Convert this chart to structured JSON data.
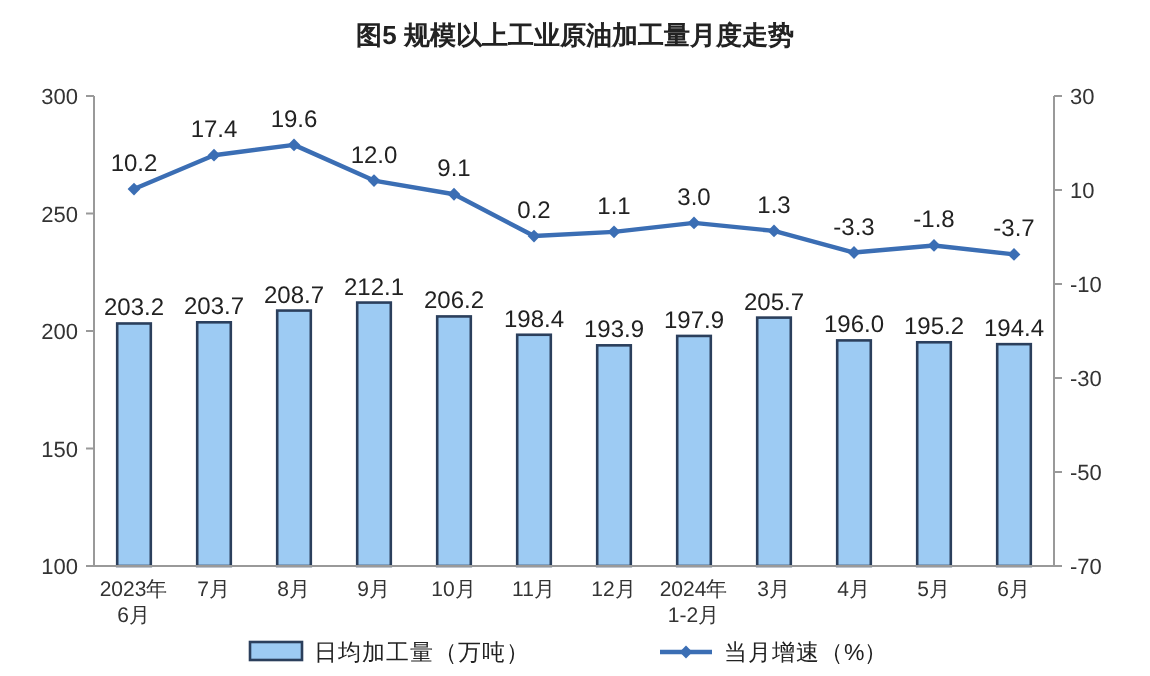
{
  "chart_data": {
    "type": "bar",
    "title": "图5  规模以上工业原油加工量月度走势",
    "categories": [
      "2023年\n6月",
      "7月",
      "8月",
      "9月",
      "10月",
      "11月",
      "12月",
      "2024年\n1-2月",
      "3月",
      "4月",
      "5月",
      "6月"
    ],
    "series": [
      {
        "name": "日均加工量（万吨）",
        "color": "#9dcbf3",
        "values": [
          203.2,
          203.7,
          208.7,
          212.1,
          206.2,
          198.4,
          193.9,
          197.9,
          205.7,
          196.0,
          195.2,
          194.4
        ],
        "value_labels": [
          "203.2",
          "203.7",
          "208.7",
          "212.1",
          "206.2",
          "198.4",
          "193.9",
          "197.9",
          "205.7",
          "196.0",
          "195.2",
          "194.4"
        ]
      },
      {
        "name": "当月增速（%）",
        "type": "line",
        "axis": "y2",
        "color": "#3b6eb4",
        "values": [
          10.2,
          17.4,
          19.6,
          12.0,
          9.1,
          0.2,
          1.1,
          3.0,
          1.3,
          -3.3,
          -1.8,
          -3.7
        ],
        "value_labels": [
          "10.2",
          "17.4",
          "19.6",
          "12.0",
          "9.1",
          "0.2",
          "1.1",
          "3.0",
          "1.3",
          "-3.3",
          "-1.8",
          "-3.7"
        ]
      }
    ],
    "ylim": [
      100,
      300
    ],
    "yticks": [
      100,
      150,
      200,
      250,
      300
    ],
    "y2lim": [
      -70,
      30
    ],
    "y2ticks": [
      -70,
      -50,
      -30,
      -10,
      10,
      30
    ],
    "grid": false,
    "legend": "bottom",
    "marker": "diamond",
    "line_style": "solid"
  }
}
